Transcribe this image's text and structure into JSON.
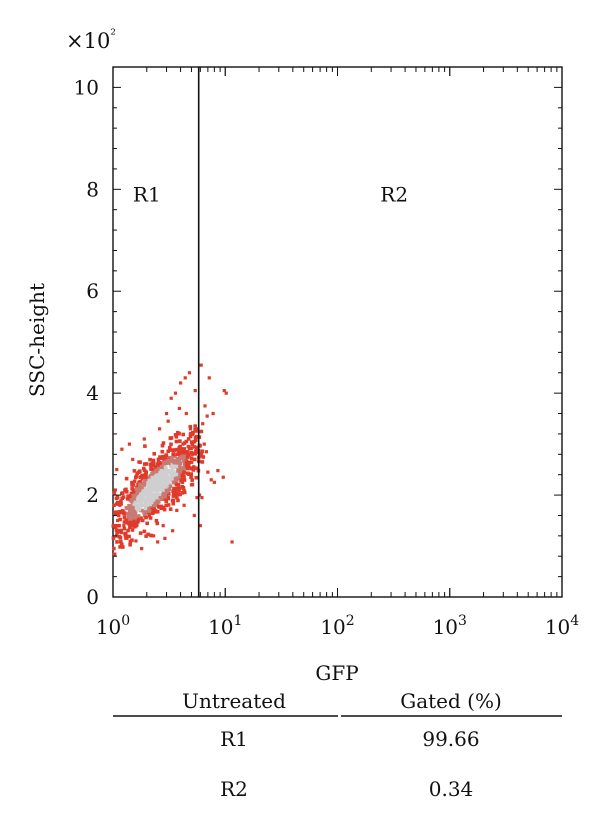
{
  "chart_data": {
    "type": "scatter",
    "title": "",
    "xlabel": "GFP",
    "ylabel": "SSC-height",
    "x_scale": "log",
    "xlim": [
      1,
      10000
    ],
    "ylim": [
      0,
      1040
    ],
    "y_multiplier_label": "×10²",
    "x_ticks": [
      {
        "value": 1,
        "base": "10",
        "exp": "0"
      },
      {
        "value": 10,
        "base": "10",
        "exp": "1"
      },
      {
        "value": 100,
        "base": "10",
        "exp": "2"
      },
      {
        "value": 1000,
        "base": "10",
        "exp": "3"
      },
      {
        "value": 10000,
        "base": "10",
        "exp": "4"
      }
    ],
    "y_ticks": [
      {
        "value": 0,
        "label": "0"
      },
      {
        "value": 200,
        "label": "2"
      },
      {
        "value": 400,
        "label": "4"
      },
      {
        "value": 600,
        "label": "6"
      },
      {
        "value": 800,
        "label": "8"
      },
      {
        "value": 1000,
        "label": "10"
      }
    ],
    "gate_x": 5.8,
    "regions": [
      {
        "name": "R1",
        "x": 2.0,
        "y": 790
      },
      {
        "name": "R2",
        "x": 320,
        "y": 790
      }
    ],
    "point_color": "#e03a2a",
    "density_core_color": "#cfcfcf",
    "cluster": {
      "x_center": 2.4,
      "y_center": 215,
      "x_log_spread": 0.22,
      "y_spread": 55
    },
    "scatter_points": [
      [
        1.1,
        150
      ],
      [
        1.2,
        290
      ],
      [
        1.4,
        300
      ],
      [
        1.3,
        125
      ],
      [
        1.6,
        110
      ],
      [
        1.8,
        95
      ],
      [
        2.2,
        120
      ],
      [
        1.5,
        270
      ],
      [
        1.9,
        310
      ],
      [
        2.6,
        330
      ],
      [
        3.0,
        360
      ],
      [
        3.3,
        390
      ],
      [
        3.6,
        400
      ],
      [
        4.0,
        420
      ],
      [
        4.4,
        430
      ],
      [
        4.8,
        440
      ],
      [
        3.9,
        370
      ],
      [
        4.2,
        300
      ],
      [
        4.6,
        260
      ],
      [
        5.0,
        220
      ],
      [
        5.3,
        160
      ],
      [
        5.6,
        195
      ],
      [
        3.4,
        130
      ],
      [
        2.9,
        115
      ],
      [
        2.5,
        108
      ],
      [
        6.1,
        455
      ],
      [
        6.6,
        375
      ],
      [
        6.9,
        355
      ],
      [
        6.3,
        340
      ],
      [
        6.5,
        300
      ],
      [
        6.8,
        285
      ],
      [
        7.0,
        245
      ],
      [
        7.5,
        230
      ],
      [
        8.0,
        225
      ],
      [
        9.6,
        235
      ],
      [
        9.8,
        405
      ],
      [
        10.2,
        400
      ],
      [
        7.2,
        430
      ],
      [
        6.2,
        195
      ],
      [
        6.0,
        140
      ],
      [
        11.5,
        108
      ],
      [
        8.6,
        248
      ],
      [
        5.9,
        200
      ],
      [
        7.8,
        360
      ],
      [
        3.1,
        345
      ],
      [
        2.3,
        120
      ],
      [
        1.7,
        265
      ],
      [
        1.25,
        140
      ],
      [
        4.9,
        330
      ],
      [
        5.4,
        405
      ],
      [
        1.05,
        210
      ],
      [
        1.08,
        250
      ],
      [
        1.15,
        180
      ],
      [
        2.8,
        140
      ],
      [
        3.7,
        170
      ],
      [
        4.3,
        180
      ],
      [
        5.1,
        280
      ],
      [
        5.7,
        330
      ],
      [
        3.8,
        250
      ],
      [
        4.5,
        360
      ]
    ]
  },
  "table": {
    "header": {
      "col1": "Untreated",
      "col2": "Gated (%)"
    },
    "rows": [
      {
        "region": "R1",
        "value": "99.66"
      },
      {
        "region": "R2",
        "value": "0.34"
      }
    ]
  }
}
